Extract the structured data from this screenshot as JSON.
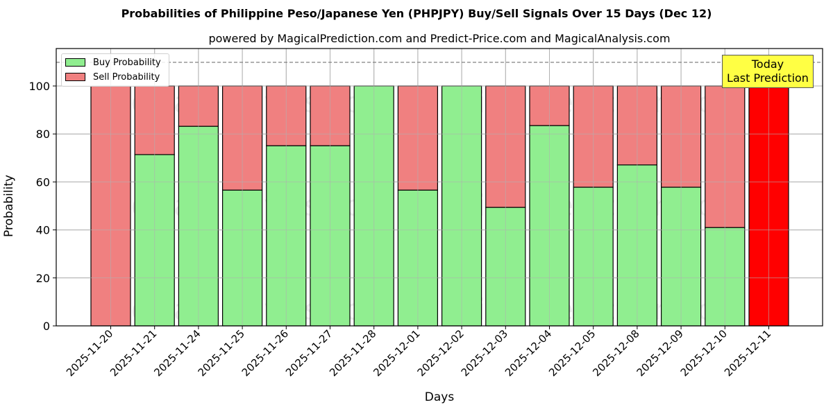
{
  "title": "Probabilities of Philippine Peso/Japanese Yen (PHPJPY) Buy/Sell Signals Over 15 Days (Dec 12)",
  "subtitle": "powered by MagicalPrediction.com and Predict-Price.com and MagicalAnalysis.com",
  "legend": {
    "buy_label": "Buy Probability",
    "sell_label": "Sell Probability"
  },
  "annotation": {
    "line1": "Today",
    "line2": "Last Prediction"
  },
  "watermarks": [
    "MagicalAnalysis.com",
    "MagicalPrediction.com"
  ],
  "colors": {
    "buy": "#90ee90",
    "sell": "#f08080",
    "today_sell": "#ff0000",
    "annotation_bg": "#ffff44",
    "grid": "#b0b0b0",
    "reference_line": "#808080"
  },
  "chart_data": {
    "type": "bar",
    "stacked": true,
    "title": "Probabilities of Philippine Peso/Japanese Yen (PHPJPY) Buy/Sell Signals Over 15 Days (Dec 12)",
    "subtitle": "powered by MagicalPrediction.com and Predict-Price.com and MagicalAnalysis.com",
    "xlabel": "Days",
    "ylabel": "Probability",
    "ylim": [
      0,
      115
    ],
    "yticks": [
      0,
      20,
      40,
      60,
      80,
      100
    ],
    "grid": true,
    "legend_position": "upper left",
    "reference_line": 110,
    "categories": [
      "2025-11-20",
      "2025-11-21",
      "2025-11-24",
      "2025-11-25",
      "2025-11-26",
      "2025-11-27",
      "2025-11-28",
      "2025-12-01",
      "2025-12-02",
      "2025-12-03",
      "2025-12-04",
      "2025-12-05",
      "2025-12-08",
      "2025-12-09",
      "2025-12-10",
      "2025-12-11"
    ],
    "series": [
      {
        "name": "Buy Probability",
        "values": [
          0,
          71.4,
          83.2,
          56.6,
          75.1,
          75.1,
          100,
          56.6,
          100,
          49.4,
          83.5,
          57.8,
          67.1,
          57.8,
          41.0,
          0
        ]
      },
      {
        "name": "Sell Probability",
        "values": [
          100,
          28.6,
          16.8,
          43.4,
          24.9,
          24.9,
          0,
          43.4,
          0,
          50.6,
          16.5,
          42.2,
          32.9,
          42.2,
          59.0,
          100
        ]
      }
    ],
    "highlight": {
      "category": "2025-12-11",
      "label": "Today Last Prediction"
    }
  }
}
